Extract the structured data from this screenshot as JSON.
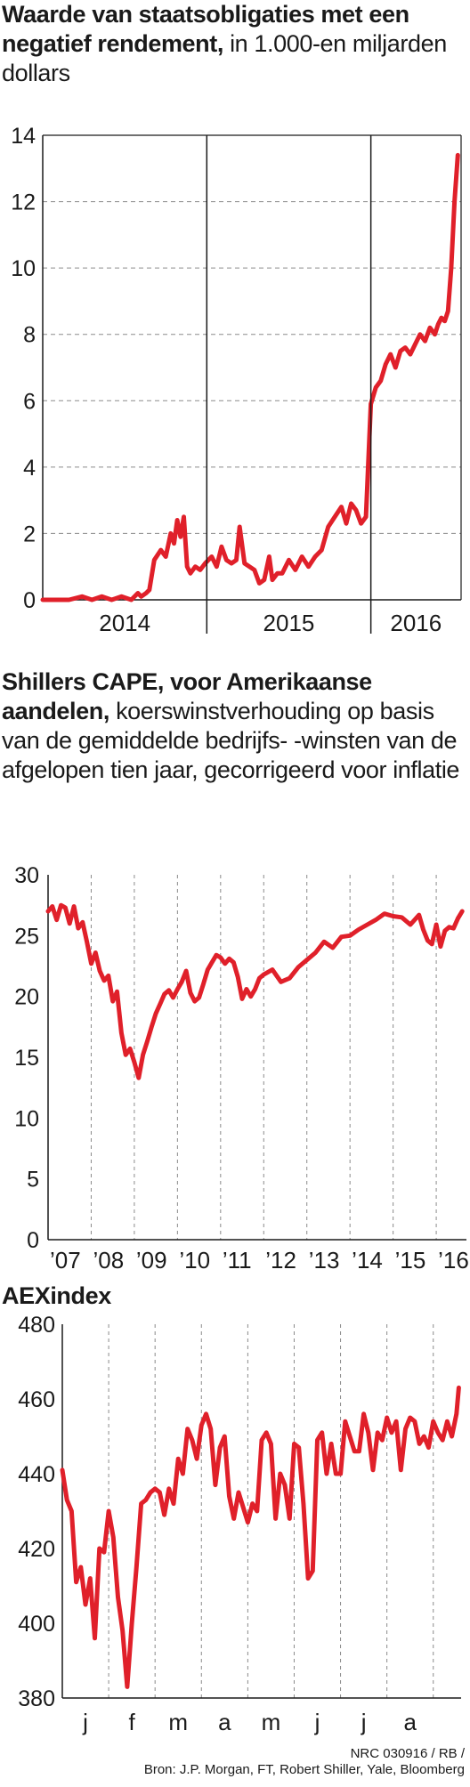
{
  "charts": [
    {
      "title_bold": "Waarde van staatsobligaties met een negatief rendement,",
      "subtitle": "in 1.000-en miljarden dollars"
    },
    {
      "title_bold": "Shillers CAPE, voor Amerikaanse aandelen,",
      "subtitle": "koerswinstverhouding op basis van de gemiddelde bedrijfs- -winsten van de afgelopen tien jaar, gecorrigeerd voor inflatie"
    },
    {
      "title_bold": "AEXindex",
      "subtitle": ""
    }
  ],
  "credit": {
    "line1": "NRC 030916 / RB /",
    "line2": "Bron: J.P. Morgan, FT,  Robert Shiller, Yale, Bloomberg"
  },
  "colors": {
    "line": "#e0202a",
    "axis": "#1a1a1a",
    "grid": "#8a8a8a"
  },
  "chart_data": [
    {
      "type": "line",
      "title": "Waarde van staatsobligaties met een negatief rendement,",
      "subtitle": "in 1.000-en miljarden dollars",
      "xlabel": "",
      "ylabel": "",
      "x_tick_labels": [
        "2014",
        "2015",
        "2016"
      ],
      "year_boundaries": [
        2015,
        2016
      ],
      "xlim": [
        2014.0,
        2016.55
      ],
      "ylim": [
        0,
        14
      ],
      "y_ticks": [
        0,
        2,
        4,
        6,
        8,
        10,
        12,
        14
      ],
      "grid": "horizontal-dashed",
      "series": [
        {
          "x": [
            2014.0,
            2014.08,
            2014.16,
            2014.24,
            2014.3,
            2014.36,
            2014.42,
            2014.48,
            2014.54,
            2014.58,
            2014.6,
            2014.63,
            2014.65,
            2014.68,
            2014.72,
            2014.75,
            2014.78,
            2014.8,
            2014.82,
            2014.84,
            2014.86,
            2014.88,
            2014.9,
            2014.93,
            2014.96,
            2014.99,
            2015.03,
            2015.06,
            2015.09,
            2015.12,
            2015.15,
            2015.18,
            2015.2,
            2015.23,
            2015.26,
            2015.29,
            2015.32,
            2015.35,
            2015.38,
            2015.4,
            2015.43,
            2015.46,
            2015.5,
            2015.54,
            2015.58,
            2015.62,
            2015.66,
            2015.7,
            2015.74,
            2015.78,
            2015.82,
            2015.85,
            2015.88,
            2015.91,
            2015.94,
            2015.97,
            2016.0,
            2016.03,
            2016.06,
            2016.09,
            2016.12,
            2016.15,
            2016.18,
            2016.21,
            2016.24,
            2016.27,
            2016.3,
            2016.33,
            2016.36,
            2016.39,
            2016.41,
            2016.43,
            2016.45,
            2016.47,
            2016.49,
            2016.51,
            2016.53
          ],
          "y": [
            0.0,
            0.0,
            0.0,
            0.1,
            0.0,
            0.1,
            0.0,
            0.1,
            0.0,
            0.2,
            0.1,
            0.2,
            0.3,
            1.2,
            1.5,
            1.3,
            2.0,
            1.7,
            2.4,
            1.9,
            2.5,
            1.0,
            0.8,
            1.0,
            0.9,
            1.1,
            1.3,
            1.0,
            1.6,
            1.2,
            1.1,
            1.2,
            2.2,
            1.1,
            1.0,
            0.9,
            0.5,
            0.6,
            1.3,
            0.6,
            0.8,
            0.8,
            1.2,
            0.9,
            1.3,
            1.0,
            1.3,
            1.5,
            2.2,
            2.5,
            2.8,
            2.3,
            2.9,
            2.7,
            2.3,
            2.5,
            5.9,
            6.4,
            6.6,
            7.1,
            7.4,
            7.0,
            7.5,
            7.6,
            7.4,
            7.7,
            8.0,
            7.8,
            8.2,
            8.0,
            8.3,
            8.5,
            8.4,
            8.7,
            10.0,
            12.0,
            13.4
          ]
        }
      ]
    },
    {
      "type": "line",
      "title": "Shillers CAPE, voor Amerikaanse aandelen,",
      "subtitle": "koerswinstverhouding op basis van de gemiddelde bedrijfs- -winsten van de afgelopen tien jaar, gecorrigeerd voor inflatie",
      "xlabel": "",
      "ylabel": "",
      "x_tick_labels": [
        "’07",
        "’08",
        "’09",
        "’10",
        "’11",
        "’12",
        "’13",
        "’14",
        "’15",
        "’16"
      ],
      "xlim": [
        2007.0,
        2016.7
      ],
      "ylim": [
        0,
        30
      ],
      "y_ticks": [
        0,
        5,
        10,
        15,
        20,
        25,
        30
      ],
      "grid": "vertical-dashed",
      "series": [
        {
          "x": [
            2007.0,
            2007.1,
            2007.2,
            2007.3,
            2007.4,
            2007.5,
            2007.6,
            2007.7,
            2007.8,
            2007.9,
            2008.0,
            2008.1,
            2008.2,
            2008.3,
            2008.4,
            2008.5,
            2008.6,
            2008.7,
            2008.8,
            2008.9,
            2009.0,
            2009.1,
            2009.2,
            2009.3,
            2009.4,
            2009.5,
            2009.6,
            2009.7,
            2009.8,
            2009.9,
            2010.0,
            2010.1,
            2010.2,
            2010.3,
            2010.4,
            2010.5,
            2010.6,
            2010.7,
            2010.8,
            2010.9,
            2011.0,
            2011.1,
            2011.2,
            2011.3,
            2011.4,
            2011.5,
            2011.6,
            2011.7,
            2011.8,
            2011.9,
            2012.0,
            2012.2,
            2012.4,
            2012.6,
            2012.8,
            2013.0,
            2013.2,
            2013.4,
            2013.6,
            2013.8,
            2014.0,
            2014.2,
            2014.4,
            2014.6,
            2014.8,
            2015.0,
            2015.2,
            2015.4,
            2015.6,
            2015.7,
            2015.8,
            2015.9,
            2016.0,
            2016.1,
            2016.2,
            2016.3,
            2016.4,
            2016.5,
            2016.6
          ],
          "y": [
            27.0,
            27.4,
            26.3,
            27.5,
            27.3,
            26.0,
            27.4,
            25.6,
            26.1,
            24.5,
            22.7,
            23.6,
            22.1,
            21.3,
            21.7,
            19.6,
            20.4,
            17.0,
            15.2,
            15.7,
            14.6,
            13.3,
            15.2,
            16.3,
            17.5,
            18.6,
            19.4,
            20.2,
            20.5,
            19.9,
            20.6,
            21.2,
            22.1,
            20.3,
            19.6,
            19.9,
            21.0,
            22.2,
            22.8,
            23.4,
            23.2,
            22.7,
            23.1,
            22.8,
            21.6,
            19.8,
            20.6,
            20.0,
            20.6,
            21.5,
            21.8,
            22.2,
            21.2,
            21.5,
            22.4,
            23.0,
            23.6,
            24.5,
            24.0,
            24.9,
            25.0,
            25.5,
            25.9,
            26.3,
            26.8,
            26.6,
            26.5,
            25.9,
            26.7,
            25.5,
            24.6,
            24.3,
            25.9,
            24.1,
            25.4,
            25.7,
            25.6,
            26.4,
            27.0
          ]
        }
      ]
    },
    {
      "type": "line",
      "title": "AEXindex",
      "subtitle": "",
      "xlabel": "",
      "ylabel": "",
      "x_tick_labels": [
        "j",
        "f",
        "m",
        "a",
        "m",
        "j",
        "j",
        "a"
      ],
      "xlim": [
        0,
        8.6
      ],
      "ylim": [
        380,
        480
      ],
      "y_ticks": [
        380,
        400,
        420,
        440,
        460,
        480
      ],
      "grid": "vertical-dashed",
      "series": [
        {
          "x": [
            0.0,
            0.1,
            0.2,
            0.3,
            0.4,
            0.5,
            0.6,
            0.7,
            0.8,
            0.9,
            1.0,
            1.1,
            1.2,
            1.3,
            1.4,
            1.5,
            1.6,
            1.7,
            1.8,
            1.9,
            2.0,
            2.1,
            2.2,
            2.3,
            2.4,
            2.5,
            2.6,
            2.7,
            2.8,
            2.9,
            3.0,
            3.1,
            3.2,
            3.3,
            3.4,
            3.5,
            3.6,
            3.7,
            3.8,
            3.9,
            4.0,
            4.1,
            4.2,
            4.3,
            4.4,
            4.5,
            4.6,
            4.7,
            4.8,
            4.9,
            5.0,
            5.1,
            5.2,
            5.3,
            5.4,
            5.5,
            5.6,
            5.7,
            5.8,
            5.9,
            6.0,
            6.1,
            6.2,
            6.3,
            6.4,
            6.5,
            6.6,
            6.7,
            6.8,
            6.9,
            7.0,
            7.1,
            7.2,
            7.3,
            7.4,
            7.5,
            7.6,
            7.7,
            7.8,
            7.9,
            8.0,
            8.1,
            8.2,
            8.3,
            8.4,
            8.5,
            8.55
          ],
          "y": [
            441,
            433,
            430,
            411,
            415,
            405,
            412,
            396,
            420,
            419,
            430,
            423,
            407,
            398,
            383,
            400,
            415,
            432,
            433,
            435,
            436,
            435,
            429,
            436,
            432,
            444,
            440,
            452,
            449,
            444,
            453,
            456,
            452,
            437,
            447,
            450,
            434,
            428,
            435,
            431,
            427,
            432,
            430,
            449,
            451,
            448,
            428,
            440,
            437,
            428,
            448,
            447,
            432,
            412,
            414,
            449,
            451,
            440,
            448,
            440,
            440,
            454,
            450,
            446,
            446,
            456,
            451,
            441,
            451,
            449,
            455,
            451,
            454,
            441,
            452,
            455,
            454,
            448,
            450,
            447,
            454,
            451,
            449,
            454,
            450,
            456,
            463
          ]
        }
      ]
    }
  ]
}
